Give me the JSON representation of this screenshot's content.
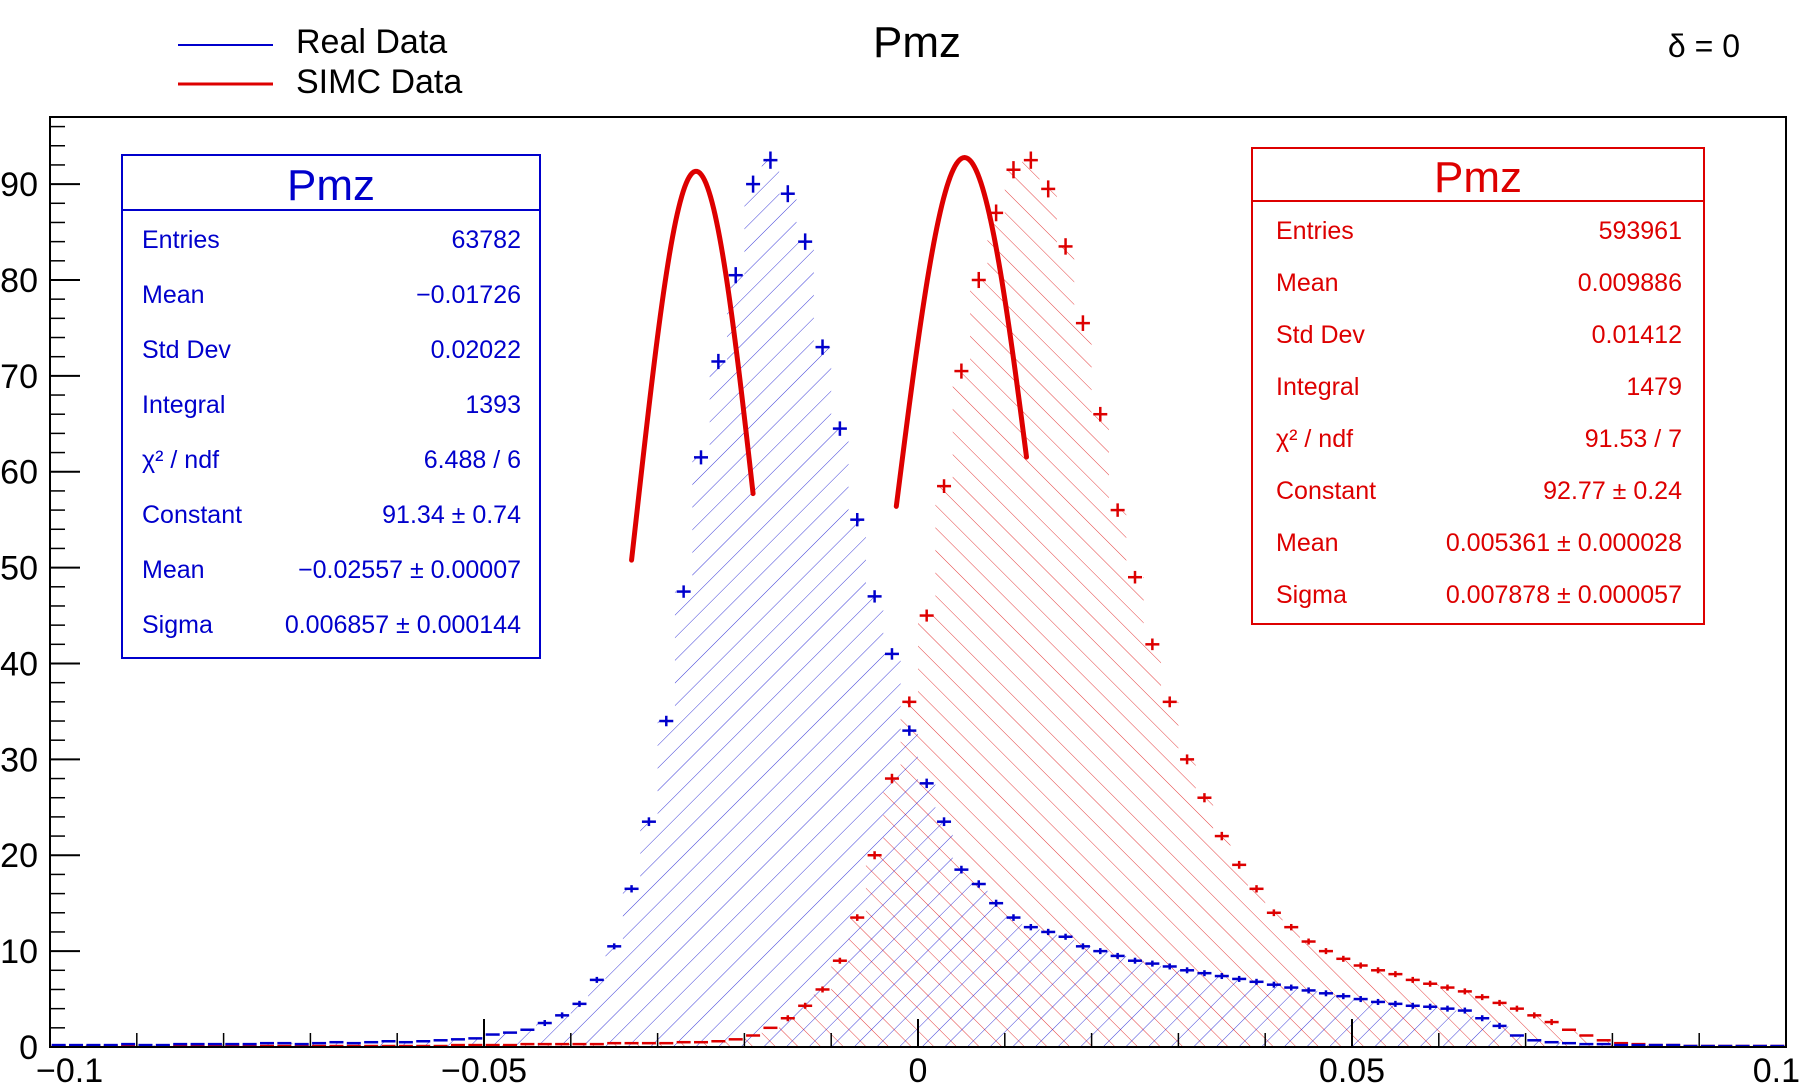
{
  "chart_data": {
    "type": "histogram",
    "title": "Pmz",
    "annotation": "δ = 0",
    "xlabel": "",
    "ylabel": "",
    "xlim": [
      -0.1,
      0.1
    ],
    "ylim": [
      0,
      97
    ],
    "x_ticks": [
      -0.1,
      -0.05,
      0,
      0.05,
      0.1
    ],
    "x_tick_labels": [
      "−0.1",
      "−0.05",
      "0",
      "0.05",
      "0.1"
    ],
    "y_ticks": [
      0,
      10,
      20,
      30,
      40,
      50,
      60,
      70,
      80,
      90
    ],
    "y_tick_labels": [
      "0",
      "10",
      "20",
      "30",
      "40",
      "50",
      "60",
      "70",
      "80",
      "90"
    ],
    "legend": {
      "placement": "top-left",
      "entries": [
        {
          "label": "Real Data",
          "color": "#0000cc"
        },
        {
          "label": "SIMC Data",
          "color": "#dd0000"
        }
      ]
    },
    "series": [
      {
        "name": "Real Data",
        "color": "#0000cc",
        "fill": "hatch-forward",
        "stats": {
          "title": "Pmz",
          "rows": [
            {
              "label": "Entries",
              "value": "63782"
            },
            {
              "label": "Mean",
              "value": "−0.01726"
            },
            {
              "label": "Std Dev",
              "value": "0.02022"
            },
            {
              "label": "Integral",
              "value": "1393"
            },
            {
              "label": "χ² / ndf",
              "value": "6.488 / 6"
            },
            {
              "label": "Constant",
              "value": "91.34 ± 0.74"
            },
            {
              "label": "Mean",
              "value": "−0.02557 ± 0.00007"
            },
            {
              "label": "Sigma",
              "value": "0.006857 ± 0.000144"
            }
          ]
        },
        "fit": {
          "type": "gaus",
          "constant": 91.34,
          "mean": -0.02557,
          "sigma": 0.006857,
          "range": [
            -0.033,
            -0.019
          ],
          "color": "#dd0000"
        },
        "points": [
          [
            -0.099,
            0.2
          ],
          [
            -0.097,
            0.2
          ],
          [
            -0.095,
            0.2
          ],
          [
            -0.093,
            0.2
          ],
          [
            -0.091,
            0.3
          ],
          [
            -0.089,
            0.2
          ],
          [
            -0.087,
            0.2
          ],
          [
            -0.085,
            0.3
          ],
          [
            -0.083,
            0.3
          ],
          [
            -0.081,
            0.3
          ],
          [
            -0.079,
            0.3
          ],
          [
            -0.077,
            0.3
          ],
          [
            -0.075,
            0.4
          ],
          [
            -0.073,
            0.4
          ],
          [
            -0.071,
            0.3
          ],
          [
            -0.069,
            0.4
          ],
          [
            -0.067,
            0.5
          ],
          [
            -0.065,
            0.4
          ],
          [
            -0.063,
            0.5
          ],
          [
            -0.061,
            0.6
          ],
          [
            -0.059,
            0.5
          ],
          [
            -0.057,
            0.6
          ],
          [
            -0.055,
            0.7
          ],
          [
            -0.053,
            0.8
          ],
          [
            -0.051,
            0.9
          ],
          [
            -0.049,
            1.3
          ],
          [
            -0.047,
            1.5
          ],
          [
            -0.045,
            1.8
          ],
          [
            -0.043,
            2.5
          ],
          [
            -0.041,
            3.3
          ],
          [
            -0.039,
            4.5
          ],
          [
            -0.037,
            7.0
          ],
          [
            -0.035,
            10.5
          ],
          [
            -0.033,
            16.5
          ],
          [
            -0.031,
            23.5
          ],
          [
            -0.029,
            34.0
          ],
          [
            -0.027,
            47.5
          ],
          [
            -0.025,
            61.5
          ],
          [
            -0.023,
            71.5
          ],
          [
            -0.021,
            80.5
          ],
          [
            -0.019,
            90.0
          ],
          [
            -0.017,
            92.5
          ],
          [
            -0.015,
            89.0
          ],
          [
            -0.013,
            84.0
          ],
          [
            -0.011,
            73.0
          ],
          [
            -0.009,
            64.5
          ],
          [
            -0.007,
            55.0
          ],
          [
            -0.005,
            47.0
          ],
          [
            -0.003,
            41.0
          ],
          [
            -0.001,
            33.0
          ],
          [
            0.001,
            27.5
          ],
          [
            0.003,
            23.5
          ],
          [
            0.005,
            18.5
          ],
          [
            0.007,
            17.0
          ],
          [
            0.009,
            15.0
          ],
          [
            0.011,
            13.5
          ],
          [
            0.013,
            12.5
          ],
          [
            0.015,
            12.0
          ],
          [
            0.017,
            11.5
          ],
          [
            0.019,
            10.5
          ],
          [
            0.021,
            10.0
          ],
          [
            0.023,
            9.5
          ],
          [
            0.025,
            9.0
          ],
          [
            0.027,
            8.7
          ],
          [
            0.029,
            8.4
          ],
          [
            0.031,
            8.0
          ],
          [
            0.033,
            7.7
          ],
          [
            0.035,
            7.4
          ],
          [
            0.037,
            7.1
          ],
          [
            0.039,
            6.8
          ],
          [
            0.041,
            6.5
          ],
          [
            0.043,
            6.2
          ],
          [
            0.045,
            5.9
          ],
          [
            0.047,
            5.6
          ],
          [
            0.049,
            5.3
          ],
          [
            0.051,
            5.0
          ],
          [
            0.053,
            4.7
          ],
          [
            0.055,
            4.5
          ],
          [
            0.057,
            4.3
          ],
          [
            0.059,
            4.2
          ],
          [
            0.061,
            4.0
          ],
          [
            0.063,
            3.8
          ],
          [
            0.065,
            3.0
          ],
          [
            0.067,
            2.2
          ],
          [
            0.069,
            1.2
          ],
          [
            0.071,
            0.7
          ],
          [
            0.073,
            0.5
          ],
          [
            0.075,
            0.4
          ],
          [
            0.077,
            0.3
          ],
          [
            0.079,
            0.3
          ],
          [
            0.081,
            0.2
          ],
          [
            0.083,
            0.2
          ],
          [
            0.085,
            0.2
          ],
          [
            0.087,
            0.2
          ],
          [
            0.089,
            0.1
          ],
          [
            0.091,
            0.1
          ],
          [
            0.093,
            0.1
          ],
          [
            0.095,
            0.1
          ],
          [
            0.097,
            0.1
          ],
          [
            0.099,
            0.1
          ]
        ]
      },
      {
        "name": "SIMC Data",
        "color": "#dd0000",
        "fill": "hatch-backward",
        "stats": {
          "title": "Pmz",
          "rows": [
            {
              "label": "Entries",
              "value": "593961"
            },
            {
              "label": "Mean",
              "value": "0.009886"
            },
            {
              "label": "Std Dev",
              "value": "0.01412"
            },
            {
              "label": "Integral",
              "value": "1479"
            },
            {
              "label": "χ² / ndf",
              "value": "91.53 / 7"
            },
            {
              "label": "Constant",
              "value": "92.77 ± 0.24"
            },
            {
              "label": "Mean",
              "value": "0.005361 ± 0.000028"
            },
            {
              "label": "Sigma",
              "value": "0.007878 ± 0.000057"
            }
          ]
        },
        "fit": {
          "type": "gaus",
          "constant": 92.77,
          "mean": 0.005361,
          "sigma": 0.007878,
          "range": [
            -0.0025,
            0.0125
          ],
          "color": "#dd0000"
        },
        "points": [
          [
            -0.099,
            0.1
          ],
          [
            -0.097,
            0.1
          ],
          [
            -0.095,
            0.1
          ],
          [
            -0.093,
            0.1
          ],
          [
            -0.091,
            0.1
          ],
          [
            -0.089,
            0.1
          ],
          [
            -0.087,
            0.1
          ],
          [
            -0.085,
            0.1
          ],
          [
            -0.083,
            0.1
          ],
          [
            -0.081,
            0.1
          ],
          [
            -0.079,
            0.1
          ],
          [
            -0.077,
            0.1
          ],
          [
            -0.075,
            0.1
          ],
          [
            -0.073,
            0.1
          ],
          [
            -0.071,
            0.1
          ],
          [
            -0.069,
            0.1
          ],
          [
            -0.067,
            0.1
          ],
          [
            -0.065,
            0.1
          ],
          [
            -0.063,
            0.1
          ],
          [
            -0.061,
            0.1
          ],
          [
            -0.059,
            0.1
          ],
          [
            -0.057,
            0.1
          ],
          [
            -0.055,
            0.1
          ],
          [
            -0.053,
            0.2
          ],
          [
            -0.051,
            0.2
          ],
          [
            -0.049,
            0.2
          ],
          [
            -0.047,
            0.2
          ],
          [
            -0.045,
            0.3
          ],
          [
            -0.043,
            0.3
          ],
          [
            -0.041,
            0.3
          ],
          [
            -0.039,
            0.3
          ],
          [
            -0.037,
            0.3
          ],
          [
            -0.035,
            0.4
          ],
          [
            -0.033,
            0.4
          ],
          [
            -0.031,
            0.4
          ],
          [
            -0.029,
            0.4
          ],
          [
            -0.027,
            0.5
          ],
          [
            -0.025,
            0.5
          ],
          [
            -0.023,
            0.6
          ],
          [
            -0.021,
            0.8
          ],
          [
            -0.019,
            1.2
          ],
          [
            -0.017,
            2.0
          ],
          [
            -0.015,
            3.0
          ],
          [
            -0.013,
            4.3
          ],
          [
            -0.011,
            6.0
          ],
          [
            -0.009,
            9.0
          ],
          [
            -0.007,
            13.5
          ],
          [
            -0.005,
            20.0
          ],
          [
            -0.003,
            28.0
          ],
          [
            -0.001,
            36.0
          ],
          [
            0.001,
            45.0
          ],
          [
            0.003,
            58.5
          ],
          [
            0.005,
            70.5
          ],
          [
            0.007,
            80.0
          ],
          [
            0.009,
            87.0
          ],
          [
            0.011,
            91.5
          ],
          [
            0.013,
            92.5
          ],
          [
            0.015,
            89.5
          ],
          [
            0.017,
            83.5
          ],
          [
            0.019,
            75.5
          ],
          [
            0.021,
            66.0
          ],
          [
            0.023,
            56.0
          ],
          [
            0.025,
            49.0
          ],
          [
            0.027,
            42.0
          ],
          [
            0.029,
            36.0
          ],
          [
            0.031,
            30.0
          ],
          [
            0.033,
            26.0
          ],
          [
            0.035,
            22.0
          ],
          [
            0.037,
            19.0
          ],
          [
            0.039,
            16.5
          ],
          [
            0.041,
            14.0
          ],
          [
            0.043,
            12.5
          ],
          [
            0.045,
            11.0
          ],
          [
            0.047,
            10.0
          ],
          [
            0.049,
            9.2
          ],
          [
            0.051,
            8.5
          ],
          [
            0.053,
            8.0
          ],
          [
            0.055,
            7.6
          ],
          [
            0.057,
            7.0
          ],
          [
            0.059,
            6.6
          ],
          [
            0.061,
            6.2
          ],
          [
            0.063,
            5.8
          ],
          [
            0.065,
            5.2
          ],
          [
            0.067,
            4.6
          ],
          [
            0.069,
            4.0
          ],
          [
            0.071,
            3.3
          ],
          [
            0.073,
            2.6
          ],
          [
            0.075,
            1.8
          ],
          [
            0.077,
            1.2
          ],
          [
            0.079,
            0.7
          ],
          [
            0.081,
            0.4
          ],
          [
            0.083,
            0.3
          ],
          [
            0.085,
            0.2
          ],
          [
            0.087,
            0.2
          ],
          [
            0.089,
            0.1
          ],
          [
            0.091,
            0.1
          ],
          [
            0.093,
            0.1
          ],
          [
            0.095,
            0.1
          ],
          [
            0.097,
            0.1
          ],
          [
            0.099,
            0.1
          ]
        ]
      }
    ]
  }
}
